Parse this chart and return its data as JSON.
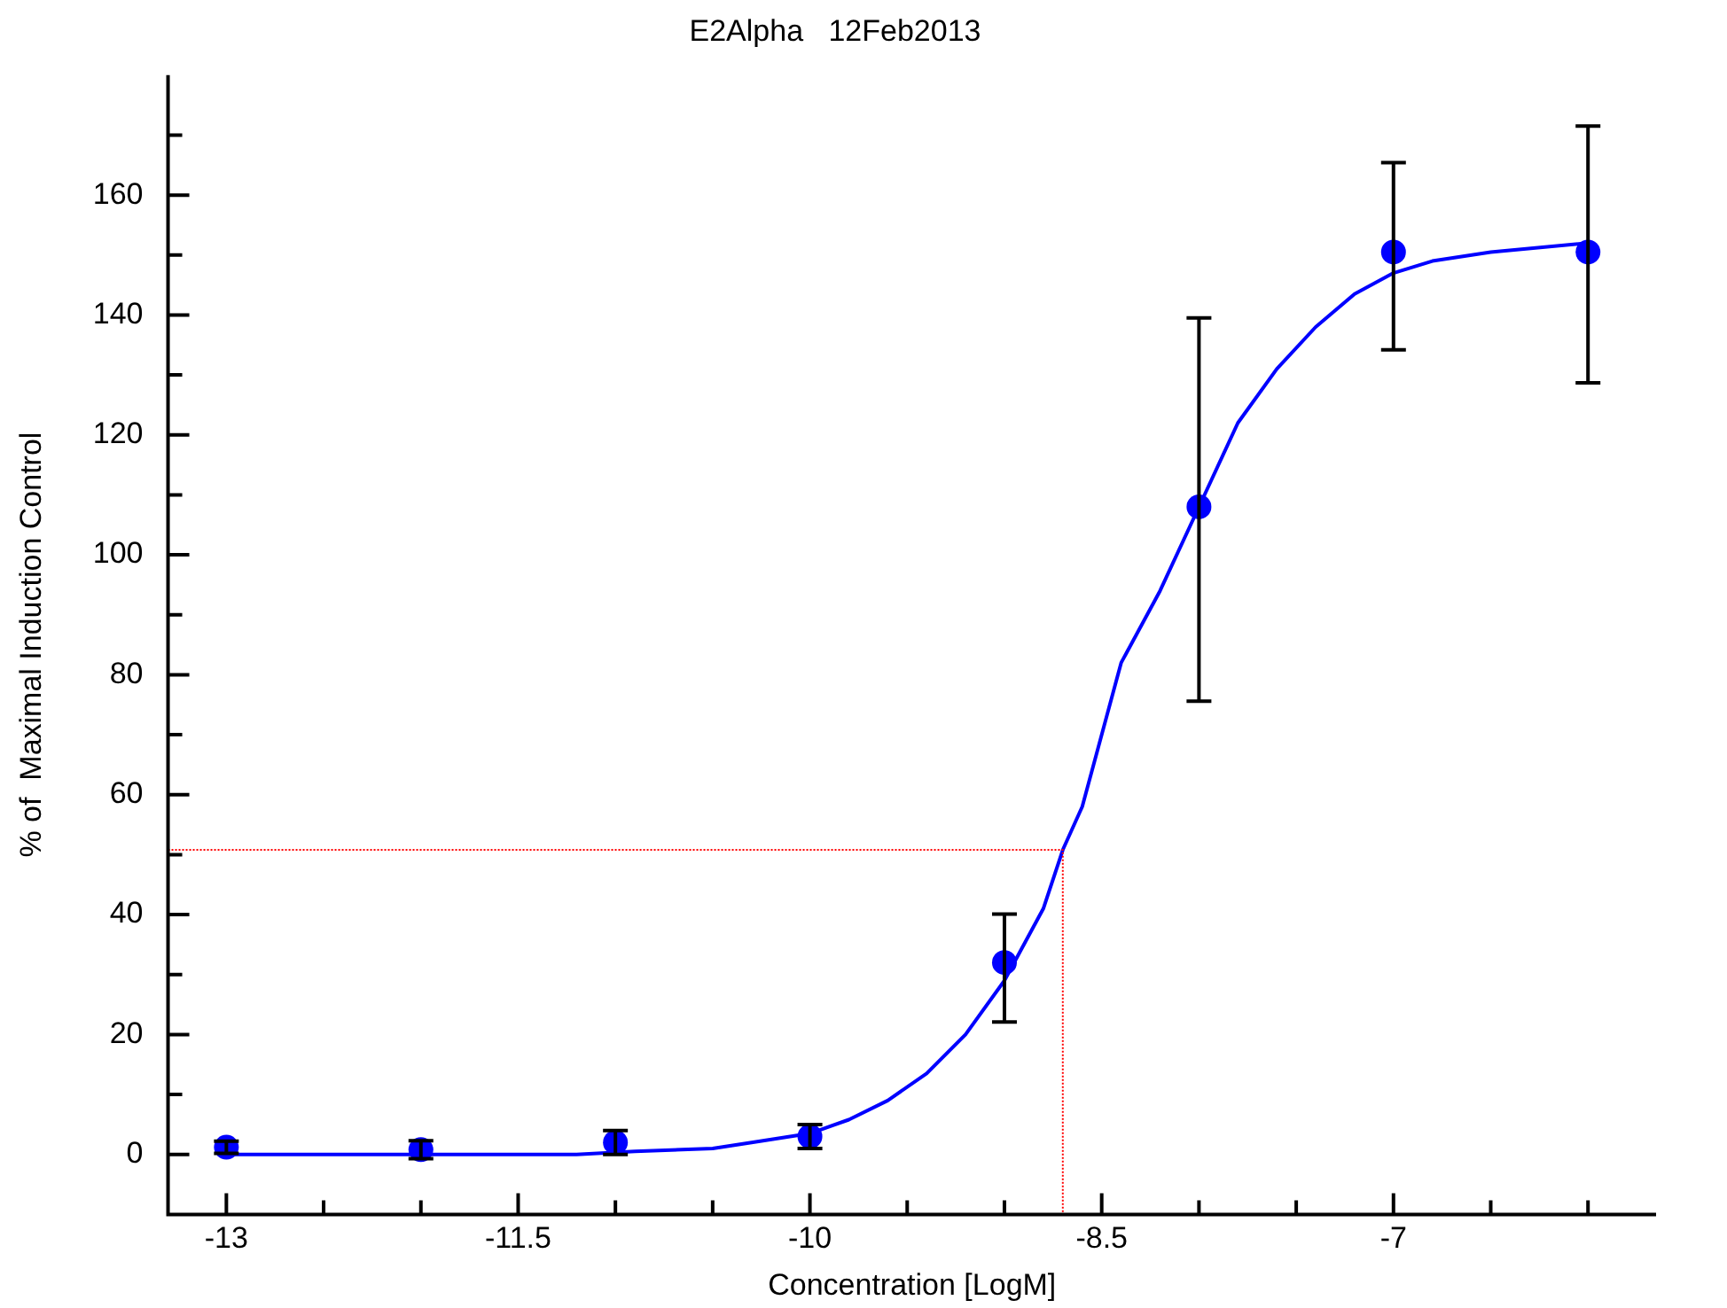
{
  "chart_data": {
    "type": "scatter",
    "title": "E2Alpha   12Feb2013",
    "xlabel": "Concentration [LogM]",
    "ylabel": "% of  Maximal Induction Control",
    "xlim": [
      -13.3,
      -5.65
    ],
    "ylim": [
      -10,
      180
    ],
    "xticks": [
      -13,
      {
        "value": -12.5,
        "label": null
      },
      {
        "value": -12,
        "label": null
      },
      -11.5,
      {
        "value": -11,
        "label": null
      },
      {
        "value": -10.5,
        "label": null
      },
      -10,
      {
        "value": -9.5,
        "label": null
      },
      {
        "value": -9,
        "label": null
      },
      -8.5,
      {
        "value": -8,
        "label": null
      },
      {
        "value": -7.5,
        "label": null
      },
      -7,
      {
        "value": -6.5,
        "label": null
      },
      {
        "value": -6,
        "label": null
      }
    ],
    "yticks": [
      0,
      {
        "value": 10,
        "label": null
      },
      20,
      {
        "value": 30,
        "label": null
      },
      40,
      {
        "value": 50,
        "label": null
      },
      60,
      {
        "value": 70,
        "label": null
      },
      80,
      {
        "value": 90,
        "label": null
      },
      100,
      {
        "value": 110,
        "label": null
      },
      120,
      {
        "value": 130,
        "label": null
      },
      140,
      {
        "value": 150,
        "label": null
      },
      160,
      {
        "value": 170,
        "label": null
      }
    ],
    "grid": false,
    "legend": false,
    "series": [
      {
        "type": "line",
        "color": "#ff0000",
        "marker": "none",
        "line_style": "dotted",
        "x": [
          -13.3,
          -8.7,
          -8.7
        ],
        "values": [
          50.8,
          50.8,
          -10
        ]
      },
      {
        "type": "line",
        "color": "#0000ff",
        "marker": "none",
        "line_style": "solid",
        "x": [
          -13,
          -11.2,
          -10.9,
          -10.5,
          -10.3,
          -10,
          -9.8,
          -9.6,
          -9.4,
          -9.2,
          -9,
          -8.8,
          -8.7,
          -8.6,
          -8.4,
          -8.2,
          -8,
          -7.8,
          -7.6,
          -7.4,
          -7.2,
          -7,
          -6.8,
          -6.5,
          -6
        ],
        "values": [
          0,
          0,
          0.5,
          1,
          2,
          3.5,
          5.8,
          9,
          13.5,
          20,
          29,
          41,
          50.8,
          58,
          82,
          94,
          108,
          122,
          131,
          138,
          143.5,
          147,
          149,
          150.5,
          152
        ]
      },
      {
        "type": "scatter",
        "color": "#0000ff",
        "marker": "circle",
        "x": [
          -13,
          -12,
          -11,
          -10,
          -9,
          -8,
          -7,
          -6
        ],
        "values": [
          1.2,
          0.8,
          2,
          3,
          32,
          108,
          150.5,
          150.5
        ],
        "errors": [
          1,
          1.5,
          2,
          2,
          [
            22.1,
            40.1
          ],
          [
            75.6,
            139.5
          ],
          [
            134.2,
            165.4
          ],
          [
            128.7,
            171.5
          ]
        ]
      }
    ]
  }
}
